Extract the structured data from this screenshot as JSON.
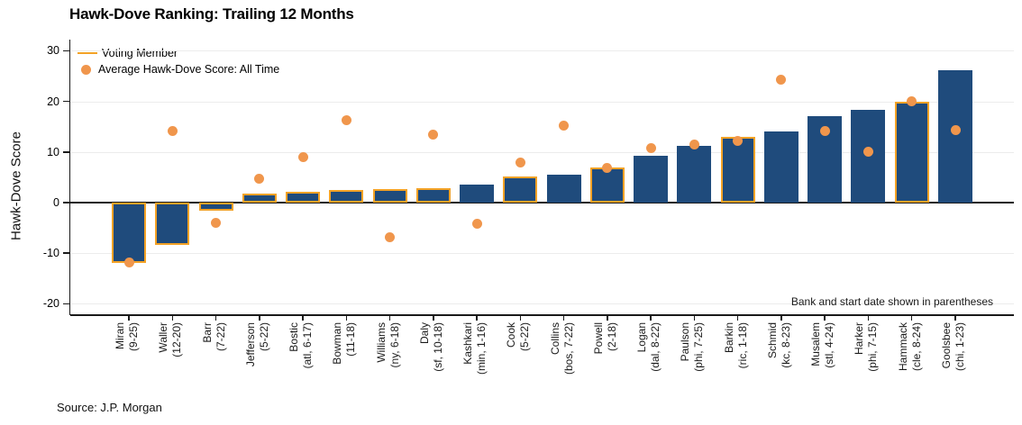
{
  "title": "Hawk-Dove Ranking: Trailing 12 Months",
  "y_axis_title": "Hawk-Dove Score",
  "legend": {
    "voting_member_label": "Voting Member",
    "average_label": "Average Hawk-Dove Score: All Time"
  },
  "note": "Bank and start date shown in parentheses",
  "source": "Source: J.P. Morgan",
  "colors": {
    "bar_fill": "#1f4b7c",
    "voting_outline": "#f3a226",
    "average_dot": "#f0964c",
    "gridline": "#ececec",
    "axis": "#1a1a1a"
  },
  "chart_data": {
    "type": "bar",
    "title": "Hawk-Dove Ranking: Trailing 12 Months",
    "xlabel": "",
    "ylabel": "Hawk-Dove Score",
    "ylim": [
      -22.3,
      32.6
    ],
    "yticks": [
      -20,
      -10,
      0,
      10,
      20,
      30
    ],
    "grid": true,
    "legend_position": "top-left",
    "series_note": "bar = trailing 12-month hawk-dove score; dot = average hawk-dove score all time; orange outline = voting member",
    "members": [
      {
        "name": "Miran",
        "detail": "(9-25)",
        "bar": -11.9,
        "avg": -11.8,
        "voting": true
      },
      {
        "name": "Waller",
        "detail": "(12-20)",
        "bar": -8.3,
        "avg": 14.2,
        "voting": true
      },
      {
        "name": "Barr",
        "detail": "(7-22)",
        "bar": -1.6,
        "avg": -4.0,
        "voting": true
      },
      {
        "name": "Jefferson",
        "detail": "(5-22)",
        "bar": 1.7,
        "avg": 4.7,
        "voting": true
      },
      {
        "name": "Bostic",
        "detail": "(atl, 6-17)",
        "bar": 2.1,
        "avg": 9.0,
        "voting": true
      },
      {
        "name": "Bowman",
        "detail": "(11-18)",
        "bar": 2.4,
        "avg": 16.2,
        "voting": true
      },
      {
        "name": "Williams",
        "detail": "(ny, 6-18)",
        "bar": 2.6,
        "avg": -6.8,
        "voting": true
      },
      {
        "name": "Daly",
        "detail": "(sf, 10-18)",
        "bar": 2.8,
        "avg": 13.5,
        "voting": true
      },
      {
        "name": "Kashkari",
        "detail": "(min, 1-16)",
        "bar": 3.6,
        "avg": -4.2,
        "voting": false
      },
      {
        "name": "Cook",
        "detail": "(5-22)",
        "bar": 5.2,
        "avg": 8.0,
        "voting": true
      },
      {
        "name": "Collins",
        "detail": "(bos, 7-22)",
        "bar": 5.5,
        "avg": 15.2,
        "voting": false
      },
      {
        "name": "Powell",
        "detail": "(2-18)",
        "bar": 7.0,
        "avg": 6.9,
        "voting": true
      },
      {
        "name": "Logan",
        "detail": "(dal, 8-22)",
        "bar": 9.3,
        "avg": 10.8,
        "voting": false
      },
      {
        "name": "Paulson",
        "detail": "(phi, 7-25)",
        "bar": 11.2,
        "avg": 11.4,
        "voting": false
      },
      {
        "name": "Barkin",
        "detail": "(ric, 1-18)",
        "bar": 13.0,
        "avg": 12.2,
        "voting": true
      },
      {
        "name": "Schmid",
        "detail": "(kc, 8-23)",
        "bar": 14.0,
        "avg": 24.2,
        "voting": false
      },
      {
        "name": "Musalem",
        "detail": "(stl, 4-24)",
        "bar": 17.0,
        "avg": 14.2,
        "voting": false
      },
      {
        "name": "Harker",
        "detail": "(phi, 7-15)",
        "bar": 18.4,
        "avg": 10.0,
        "voting": false
      },
      {
        "name": "Hammack",
        "detail": "(cle, 8-24)",
        "bar": 20.0,
        "avg": 20.1,
        "voting": true
      },
      {
        "name": "Goolsbee",
        "detail": "(chi, 1-23)",
        "bar": 26.2,
        "avg": 14.4,
        "voting": false
      }
    ]
  }
}
